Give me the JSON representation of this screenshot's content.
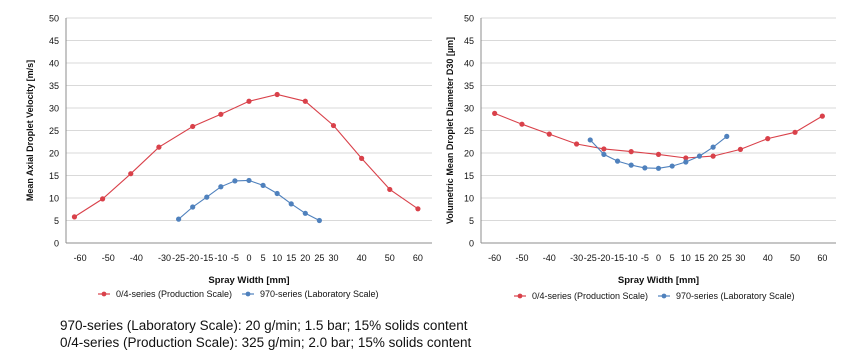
{
  "chart_data": [
    {
      "type": "line",
      "title": "",
      "xlabel": "Spray Width [mm]",
      "ylabel": "Mean Axial Droplet Velocity [m/s]",
      "xlim": [
        -65,
        65
      ],
      "ylim": [
        0,
        50
      ],
      "xticks": [
        -60,
        -50,
        -40,
        -30,
        -25,
        -20,
        -15,
        -10,
        -5,
        0,
        5,
        10,
        15,
        20,
        25,
        30,
        40,
        50,
        60
      ],
      "yticks": [
        0,
        5,
        10,
        15,
        20,
        25,
        30,
        35,
        40,
        45,
        50
      ],
      "grid": "horizontal",
      "legend": "bottom",
      "series": [
        {
          "name": "0/4-series (Production Scale)",
          "color": "#d9414a",
          "points": [
            [
              -62,
              5.8
            ],
            [
              -52,
              9.8
            ],
            [
              -42,
              15.4
            ],
            [
              -32,
              21.3
            ],
            [
              -20,
              25.9
            ],
            [
              -10,
              28.6
            ],
            [
              0,
              31.5
            ],
            [
              10,
              33.0
            ],
            [
              20,
              31.5
            ],
            [
              30,
              26.1
            ],
            [
              40,
              18.8
            ],
            [
              50,
              11.9
            ],
            [
              60,
              7.6
            ]
          ]
        },
        {
          "name": "970-series (Laboratory Scale)",
          "color": "#4f81bd",
          "points": [
            [
              -25,
              5.3
            ],
            [
              -20,
              8.0
            ],
            [
              -15,
              10.2
            ],
            [
              -10,
              12.5
            ],
            [
              -5,
              13.8
            ],
            [
              0,
              13.9
            ],
            [
              5,
              12.8
            ],
            [
              10,
              11.0
            ],
            [
              15,
              8.7
            ],
            [
              20,
              6.6
            ],
            [
              25,
              5.0
            ]
          ]
        }
      ]
    },
    {
      "type": "line",
      "title": "",
      "xlabel": "Spray Width [mm]",
      "ylabel": "Volumetric Mean Droplet Diameter D30 [µm]",
      "xlim": [
        -65,
        65
      ],
      "ylim": [
        0,
        50
      ],
      "xticks": [
        -60,
        -50,
        -40,
        -30,
        -25,
        -20,
        -15,
        -10,
        -5,
        0,
        5,
        10,
        15,
        20,
        25,
        30,
        40,
        50,
        60
      ],
      "yticks": [
        0,
        5,
        10,
        15,
        20,
        25,
        30,
        35,
        40,
        45,
        50
      ],
      "grid": "horizontal",
      "legend": "bottom",
      "series": [
        {
          "name": "0/4-series (Production Scale)",
          "color": "#d9414a",
          "points": [
            [
              -60,
              28.8
            ],
            [
              -50,
              26.4
            ],
            [
              -40,
              24.2
            ],
            [
              -30,
              22.0
            ],
            [
              -20,
              20.9
            ],
            [
              -10,
              20.3
            ],
            [
              0,
              19.7
            ],
            [
              10,
              18.9
            ],
            [
              20,
              19.3
            ],
            [
              30,
              20.8
            ],
            [
              40,
              23.2
            ],
            [
              50,
              24.6
            ],
            [
              60,
              28.2
            ]
          ]
        },
        {
          "name": "970-series (Laboratory Scale)",
          "color": "#4f81bd",
          "points": [
            [
              -25,
              22.9
            ],
            [
              -20,
              19.7
            ],
            [
              -15,
              18.2
            ],
            [
              -10,
              17.3
            ],
            [
              -5,
              16.7
            ],
            [
              0,
              16.6
            ],
            [
              5,
              17.1
            ],
            [
              10,
              18.0
            ],
            [
              15,
              19.3
            ],
            [
              20,
              21.3
            ],
            [
              25,
              23.7
            ]
          ]
        }
      ]
    }
  ],
  "notes": [
    "970-series (Laboratory Scale): 20 g/min; 1.5 bar; 15% solids content",
    "0/4-series (Production Scale): 325 g/min; 2.0 bar; 15% solids content"
  ]
}
